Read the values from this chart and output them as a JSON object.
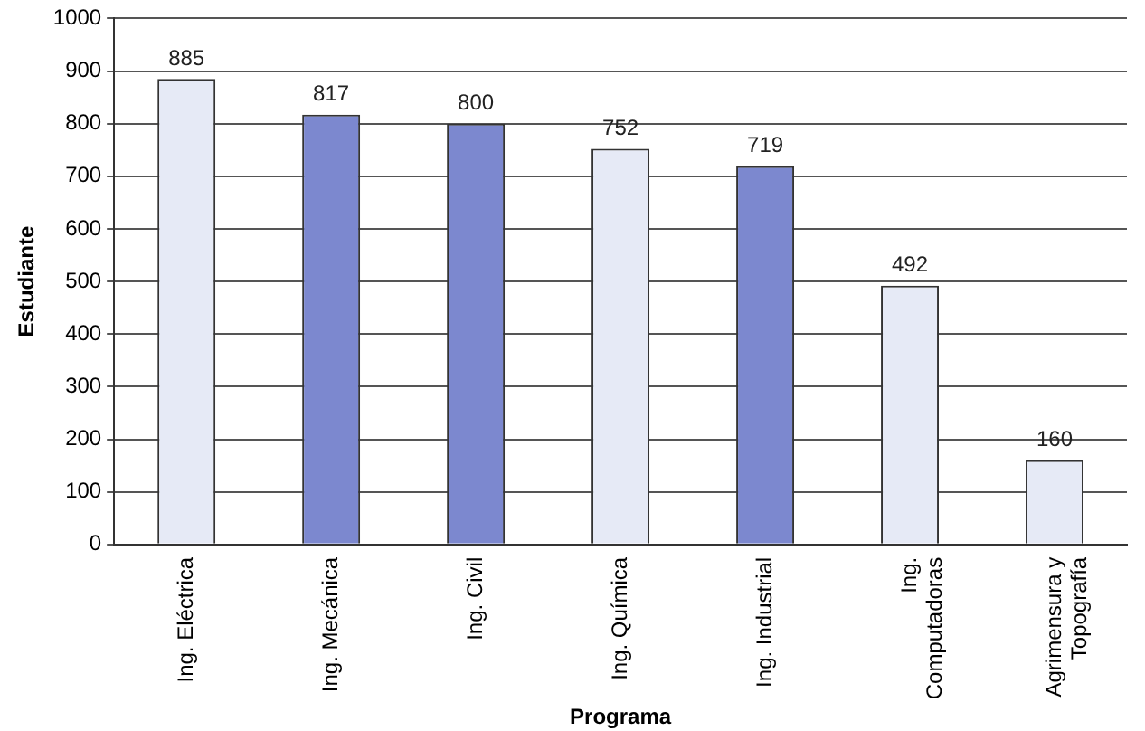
{
  "chart_data": {
    "type": "bar",
    "xlabel": "Programa",
    "ylabel": "Estudiante",
    "categories": [
      "Ing. Eléctrica",
      "Ing. Mecánica",
      "Ing. Civil",
      "Ing. Química",
      "Ing. Industrial",
      "Ing.\nComputadoras",
      "Agrimensura y\nTopografía"
    ],
    "values": [
      885,
      817,
      800,
      752,
      719,
      492,
      160
    ],
    "colors": [
      "#e6eaf6",
      "#7c88cf",
      "#7c88cf",
      "#e6eaf6",
      "#7c88cf",
      "#e6eaf6",
      "#e6eaf6"
    ],
    "ylim": [
      0,
      1000
    ],
    "yticks": [
      0,
      100,
      200,
      300,
      400,
      500,
      600,
      700,
      800,
      900,
      1000
    ],
    "grid": "y",
    "legend": false,
    "data_labels": true
  }
}
